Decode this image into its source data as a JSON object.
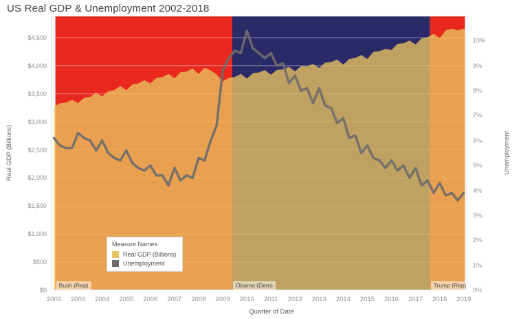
{
  "chart_data": {
    "type": "area",
    "title": "US Real GDP & Unemployment 2002-2018",
    "xlabel": "Quarter of Date",
    "x_ticks": [
      2002,
      2003,
      2004,
      2005,
      2006,
      2007,
      2008,
      2009,
      2010,
      2011,
      2012,
      2013,
      2014,
      2015,
      2016,
      2017,
      2018,
      2019
    ],
    "x_range": [
      2001.9,
      2019.15
    ],
    "grid": {
      "color": "rgba(255,255,255,0.38)",
      "horizontal": true,
      "vertical": false
    },
    "y_left": {
      "label": "Real GDP (Billions)",
      "tick_values": [
        0,
        500,
        1000,
        1500,
        2000,
        2500,
        3000,
        3500,
        4000,
        4500
      ],
      "tick_labels": [
        "$0",
        "$500",
        "$1,000",
        "$1,500",
        "$2,000",
        "$2,500",
        "$3,000",
        "$3,500",
        "$4,000",
        "$4,500"
      ],
      "value_at_top": 4890
    },
    "y_right": {
      "label": "Unemployment",
      "tick_values": [
        0,
        1,
        2,
        3,
        4,
        5,
        6,
        7,
        8,
        9,
        10
      ],
      "tick_labels": [
        "0%",
        "1%",
        "2%",
        "3%",
        "4%",
        "5%",
        "6%",
        "7%",
        "8%",
        "9%",
        "10%"
      ],
      "value_at_top": 11.0
    },
    "series": {
      "x_start": 2002.0,
      "x_step": 0.25,
      "gdp": {
        "name": "Real GDP (Billions)",
        "axis": "left",
        "color": "#e9c35f",
        "opacity": 0.78,
        "values": [
          3280,
          3330,
          3345,
          3390,
          3335,
          3425,
          3445,
          3520,
          3455,
          3545,
          3565,
          3640,
          3565,
          3665,
          3685,
          3745,
          3685,
          3785,
          3795,
          3855,
          3775,
          3885,
          3895,
          3955,
          3855,
          3965,
          3915,
          3845,
          3720,
          3785,
          3800,
          3855,
          3770,
          3865,
          3880,
          3920,
          3840,
          3925,
          3935,
          3980,
          3900,
          3995,
          3990,
          4030,
          3960,
          4055,
          4065,
          4110,
          4020,
          4120,
          4140,
          4190,
          4120,
          4245,
          4260,
          4300,
          4280,
          4390,
          4400,
          4450,
          4380,
          4490,
          4510,
          4570,
          4490,
          4630,
          4660,
          4630,
          4660
        ]
      },
      "unemployment": {
        "name": "Unemployment",
        "axis": "right",
        "color": "#6f6d6b",
        "stroke_width": 3.5,
        "values": [
          6.1,
          5.8,
          5.7,
          5.7,
          6.3,
          6.1,
          6.0,
          5.6,
          6.0,
          5.5,
          5.3,
          5.2,
          5.6,
          5.1,
          4.9,
          4.8,
          5.0,
          4.6,
          4.6,
          4.2,
          4.9,
          4.4,
          4.6,
          4.5,
          5.3,
          5.2,
          6.0,
          6.6,
          8.8,
          9.3,
          9.6,
          9.5,
          10.4,
          9.7,
          9.5,
          9.3,
          9.5,
          9.0,
          9.1,
          8.3,
          8.6,
          8.0,
          8.1,
          7.5,
          8.1,
          7.4,
          7.3,
          6.7,
          6.9,
          6.1,
          6.2,
          5.5,
          5.8,
          5.3,
          5.2,
          4.9,
          5.2,
          4.8,
          5.0,
          4.5,
          4.9,
          4.2,
          4.4,
          3.9,
          4.3,
          3.8,
          3.9,
          3.6,
          3.9
        ]
      }
    },
    "bands": [
      {
        "label": "Bush (Rep)",
        "from": 2002.06,
        "to": 2009.4,
        "color": "#e8271e"
      },
      {
        "label": "Obama (Dem)",
        "from": 2009.4,
        "to": 2017.6,
        "color": "#2b2a69"
      },
      {
        "label": "Trump (Rep)",
        "from": 2017.6,
        "to": 2019.05,
        "color": "#e8271e"
      }
    ],
    "legend": {
      "title": "Measure Names",
      "items": [
        {
          "label": "Real GDP (Billions)",
          "color": "#e9c35f"
        },
        {
          "label": "Unemployment",
          "color": "#6f6d6b"
        }
      ],
      "position": "inside-left-bottom"
    },
    "plot_border_color": "#d8d8d8"
  }
}
